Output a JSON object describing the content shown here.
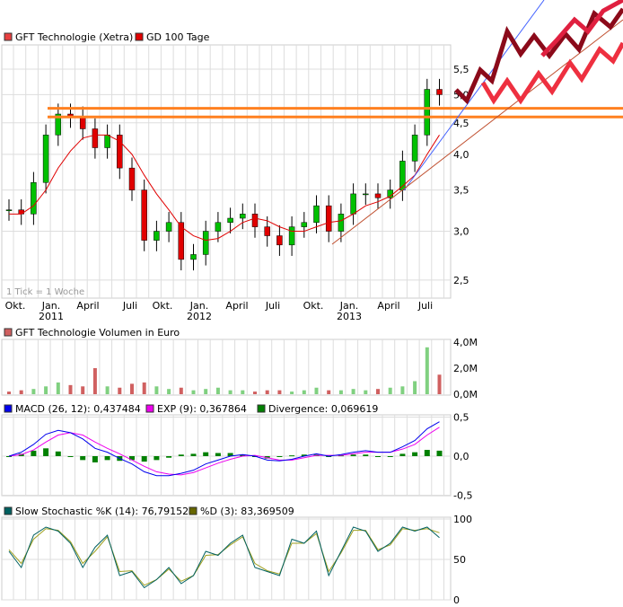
{
  "legend": {
    "price": "GFT Technologie (Xetra)",
    "gd": "GD 100 Tage",
    "volume": "GFT Technologie Volumen in Euro",
    "macd": "MACD (26, 12): 0,437484",
    "exp": "EXP (9): 0,367864",
    "div": "Divergence: 0,069619",
    "k": "Slow Stochastic %K (14): 76,791526",
    "d": "%D (3): 83,369509",
    "tick_note": "1 Tick = 1 Woche"
  },
  "colors": {
    "price": "#e84040",
    "gd": "#e00000",
    "volume": "#d06060",
    "macd": "#0000ee",
    "exp": "#ee00ee",
    "div": "#008000",
    "k": "#006060",
    "d": "#666600",
    "support": "#ff8020",
    "trend_blue": "#4060ff",
    "trend_brown": "#c05030"
  },
  "chart_data": [
    {
      "type": "line",
      "name": "price",
      "scale": "log",
      "x_ticks": [
        {
          "label": "Okt.",
          "year": ""
        },
        {
          "label": "Jan.",
          "year": "2011"
        },
        {
          "label": "April",
          "year": ""
        },
        {
          "label": "Juli",
          "year": ""
        },
        {
          "label": "Okt.",
          "year": ""
        },
        {
          "label": "Jan.",
          "year": "2012"
        },
        {
          "label": "April",
          "year": ""
        },
        {
          "label": "Juli",
          "year": ""
        },
        {
          "label": "Okt.",
          "year": ""
        },
        {
          "label": "Jan.",
          "year": "2013"
        },
        {
          "label": "April",
          "year": ""
        },
        {
          "label": "Juli",
          "year": ""
        }
      ],
      "y_ticks": [
        "2,5",
        "3,0",
        "3,5",
        "4,0",
        "4,5",
        "5,0",
        "5,5"
      ],
      "y_tick_values": [
        2.5,
        3.0,
        3.5,
        4.0,
        4.5,
        5.0,
        5.5
      ],
      "ylim": [
        2.35,
        6.1
      ],
      "months": [
        "2010-09",
        "2010-10",
        "2010-11",
        "2010-12",
        "2011-01",
        "2011-02",
        "2011-03",
        "2011-04",
        "2011-05",
        "2011-06",
        "2011-07",
        "2011-08",
        "2011-09",
        "2011-10",
        "2011-11",
        "2011-12",
        "2012-01",
        "2012-02",
        "2012-03",
        "2012-04",
        "2012-05",
        "2012-06",
        "2012-07",
        "2012-08",
        "2012-09",
        "2012-10",
        "2012-11",
        "2012-12",
        "2013-01",
        "2013-02",
        "2013-03",
        "2013-04",
        "2013-05",
        "2013-06",
        "2013-07",
        "2013-08"
      ],
      "close": [
        3.25,
        3.2,
        3.6,
        4.3,
        4.65,
        4.6,
        4.4,
        4.1,
        4.3,
        3.8,
        3.5,
        2.9,
        3.0,
        3.1,
        2.7,
        2.75,
        3.0,
        3.1,
        3.15,
        3.2,
        3.05,
        2.95,
        2.85,
        3.05,
        3.1,
        3.3,
        3.0,
        3.2,
        3.45,
        3.45,
        3.4,
        3.5,
        3.9,
        4.3,
        5.1,
        5.0
      ],
      "gd100": [
        3.2,
        3.2,
        3.3,
        3.5,
        3.8,
        4.05,
        4.25,
        4.3,
        4.3,
        4.2,
        4.0,
        3.7,
        3.45,
        3.25,
        3.05,
        2.95,
        2.9,
        2.92,
        3.0,
        3.1,
        3.15,
        3.12,
        3.05,
        3.0,
        3.0,
        3.05,
        3.1,
        3.12,
        3.2,
        3.3,
        3.35,
        3.42,
        3.55,
        3.7,
        4.0,
        4.3
      ],
      "support_levels": [
        4.75,
        4.6
      ]
    },
    {
      "type": "bar",
      "name": "volume",
      "y_ticks": [
        "0,0M",
        "2,0M",
        "4,0M"
      ],
      "ylim": [
        0,
        4
      ],
      "values": [
        0.2,
        0.3,
        0.4,
        0.6,
        0.9,
        0.7,
        0.6,
        2.0,
        0.6,
        0.5,
        0.8,
        0.9,
        0.6,
        0.4,
        0.5,
        0.3,
        0.4,
        0.5,
        0.3,
        0.3,
        0.2,
        0.3,
        0.3,
        0.2,
        0.3,
        0.5,
        0.3,
        0.3,
        0.4,
        0.3,
        0.4,
        0.5,
        0.6,
        1.0,
        3.6,
        1.5
      ]
    },
    {
      "type": "line",
      "name": "macd",
      "y_ticks": [
        "-0,5",
        "0,0",
        "0,5"
      ],
      "ylim": [
        -0.6,
        0.55
      ],
      "macd": [
        0,
        0.05,
        0.15,
        0.28,
        0.33,
        0.3,
        0.22,
        0.1,
        0.05,
        -0.03,
        -0.1,
        -0.2,
        -0.25,
        -0.25,
        -0.22,
        -0.18,
        -0.1,
        -0.05,
        0,
        0.02,
        0,
        -0.05,
        -0.06,
        -0.04,
        0,
        0.03,
        0,
        0.02,
        0.05,
        0.07,
        0.05,
        0.05,
        0.12,
        0.2,
        0.35,
        0.44
      ],
      "exp": [
        0,
        0.02,
        0.08,
        0.18,
        0.27,
        0.3,
        0.27,
        0.18,
        0.1,
        0.03,
        -0.05,
        -0.13,
        -0.2,
        -0.23,
        -0.24,
        -0.21,
        -0.15,
        -0.09,
        -0.04,
        0,
        0.01,
        -0.02,
        -0.05,
        -0.05,
        -0.02,
        0.01,
        0.01,
        0.01,
        0.03,
        0.05,
        0.05,
        0.05,
        0.09,
        0.15,
        0.27,
        0.37
      ]
    },
    {
      "type": "line",
      "name": "stochastic",
      "y_ticks": [
        "0",
        "50",
        "100"
      ],
      "ylim": [
        0,
        100
      ],
      "k": [
        60,
        40,
        80,
        90,
        85,
        70,
        40,
        65,
        80,
        30,
        35,
        15,
        25,
        40,
        20,
        30,
        60,
        55,
        70,
        80,
        40,
        35,
        30,
        75,
        70,
        85,
        30,
        60,
        90,
        85,
        60,
        70,
        90,
        85,
        90,
        77
      ],
      "d": [
        62,
        45,
        75,
        88,
        86,
        72,
        45,
        60,
        78,
        35,
        36,
        18,
        25,
        38,
        23,
        30,
        55,
        56,
        68,
        78,
        45,
        36,
        32,
        70,
        70,
        82,
        35,
        58,
        86,
        86,
        62,
        68,
        88,
        86,
        88,
        83
      ]
    }
  ]
}
